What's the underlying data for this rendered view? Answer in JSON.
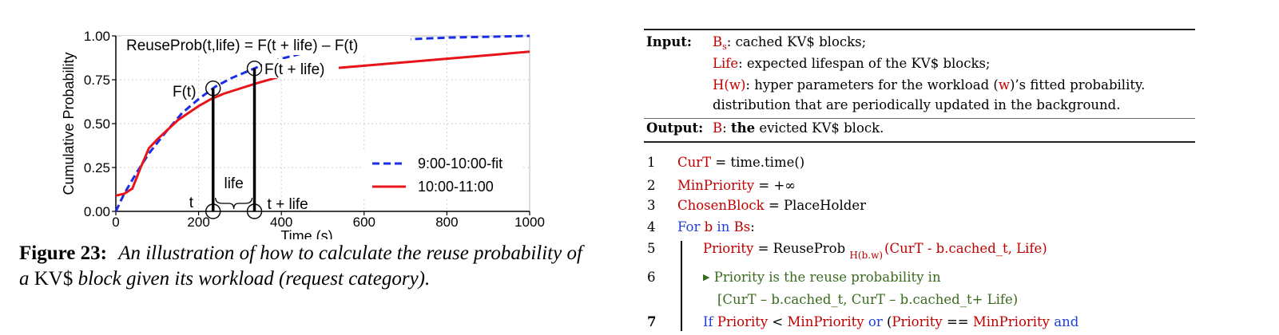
{
  "chart_data": {
    "type": "line",
    "title": "ReuseProb(t,life) = F(t + life) – F(t)",
    "xlabel": "Time (s)",
    "ylabel": "Cumulative Probability",
    "xlim": [
      0,
      1000
    ],
    "ylim": [
      0,
      1
    ],
    "xticks": [
      0,
      200,
      400,
      600,
      800,
      1000
    ],
    "xtick_labels": [
      "0",
      "200",
      "400",
      "600",
      "800",
      "1000"
    ],
    "yticks": [
      0,
      0.25,
      0.5,
      0.75,
      1.0
    ],
    "ytick_labels": [
      "0.00",
      "0.25",
      "0.50",
      "0.75",
      "1.00"
    ],
    "grid": true,
    "legend_position": "bottom-right",
    "series": [
      {
        "name": "9:00-10:00-fit",
        "style": "dashed",
        "color": "#1a2ee8",
        "x": [
          0,
          20,
          50,
          80,
          120,
          160,
          200,
          240,
          280,
          320,
          360,
          400,
          450,
          500,
          600,
          700,
          800,
          900,
          1000
        ],
        "y": [
          0.0,
          0.1,
          0.22,
          0.33,
          0.45,
          0.56,
          0.64,
          0.71,
          0.76,
          0.8,
          0.84,
          0.87,
          0.9,
          0.93,
          0.96,
          0.98,
          0.99,
          0.995,
          1.0
        ]
      },
      {
        "name": "10:00-11:00",
        "style": "solid",
        "color": "#e8141a",
        "x": [
          0,
          20,
          40,
          60,
          80,
          100,
          150,
          200,
          230,
          260,
          300,
          340,
          400,
          500,
          600,
          700,
          800,
          900,
          1000
        ],
        "y": [
          0.09,
          0.1,
          0.13,
          0.25,
          0.36,
          0.41,
          0.52,
          0.6,
          0.64,
          0.67,
          0.7,
          0.73,
          0.77,
          0.81,
          0.83,
          0.85,
          0.87,
          0.89,
          0.91
        ]
      }
    ],
    "annotations": {
      "ft": "F(t)",
      "ft_life": "F(t + life)",
      "t": "t",
      "t_plus_life": "t + life",
      "life": "life",
      "t_value": 235,
      "t_life_value": 335
    }
  },
  "caption": {
    "label": "Figure 23:",
    "text_part1": "An illustration of how to calculate the reuse probability of a",
    "kv": "KV$",
    "text_part2": "block given its workload (request category)."
  },
  "algorithm": {
    "input_label": "Input:",
    "bs_var": "B",
    "bs_sub": "s",
    "bs_desc": ": cached KV$ blocks;",
    "life_var": "Life",
    "life_desc": ": expected lifespan of the KV$ blocks;",
    "hw_var": "H(w)",
    "hw_desc1": ": hyper parameters for the workload (",
    "hw_w": "w",
    "hw_desc2": ")’s fitted probability.",
    "hw_desc3": "distribution that are periodically updated in the background.",
    "output_label": "Output:",
    "b_var": "B",
    "b_colon": ": ",
    "b_the": "the",
    "b_desc": " evicted KV$ block.",
    "lines": {
      "l1": {
        "num": "1",
        "var": "CurT",
        "rest": " = time.time()"
      },
      "l2": {
        "num": "2",
        "var": "MinPriority",
        "rest": " = +∞"
      },
      "l3": {
        "num": "3",
        "var": "ChosenBlock",
        "rest": " = PlaceHolder"
      },
      "l4": {
        "num": "4",
        "kw1": "For",
        "b": " b",
        "kw2": " in",
        "bs": " Bs",
        "colon": ":"
      },
      "l5": {
        "num": "5",
        "var": "Priority",
        "eq": " = ReuseProb ",
        "sub": "H(b.w)",
        "args": "(CurT - b.cached_t, ",
        "life": "Life",
        "close": ")"
      },
      "l6": {
        "num": "6",
        "comment1": "Priority is the reuse probability in",
        "comment2": "[CurT – b.cached_t, CurT – b.cached_t+ Life)"
      },
      "l7": {
        "num": "7",
        "kw_if": "If",
        "p1": " Priority",
        "lt": " < ",
        "mp": "MinPriority",
        "kw_or": " or",
        "open": " (",
        "p2": "Priority",
        "eqeq": " == ",
        "mp2": "MinPriority",
        "kw_and": " and"
      }
    }
  }
}
